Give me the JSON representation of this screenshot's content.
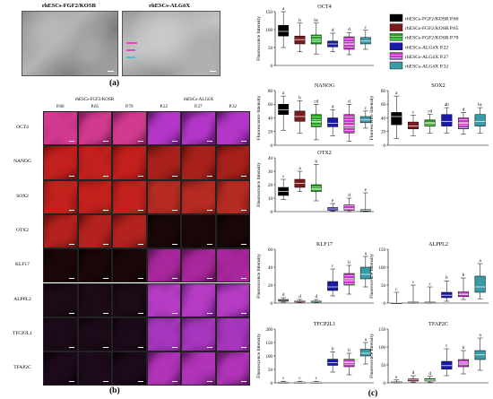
{
  "panel_a": {
    "label": "(a)",
    "left_title": "rhESCs-FGF2/KOSR",
    "right_title": "rhESCs-ALGöX"
  },
  "panel_b": {
    "label": "(b)",
    "group1_title": "rhESCs-FGF2/KOSR",
    "group2_title": "rhESCs-ALGöX",
    "columns": [
      "P.60",
      "P.65",
      "P.70",
      "P.22",
      "P.27",
      "P.32"
    ],
    "rows": [
      "OCT4",
      "NANOG",
      "SOX2",
      "OTX2",
      "KLF17",
      "ALPPL2",
      "TFCP2L1",
      "TFAP2C"
    ]
  },
  "panel_c": {
    "label": "(c)",
    "legend": [
      {
        "name": "rhESCs-FGF2/KOSR P.60",
        "color": "#000000",
        "pattern": "solid"
      },
      {
        "name": "rhESCs-FGF2/KOSR P.65",
        "color": "#7b1c1c",
        "pattern": "solid"
      },
      {
        "name": "rhESCs-FGF2/KOSR P.70",
        "color": "#1fa31f",
        "pattern": "hatch"
      },
      {
        "name": "rhESCs-ALGöX P.22",
        "color": "#1a1aa8",
        "pattern": "solid"
      },
      {
        "name": "rhESCs-ALGöX P.27",
        "color": "#cc33cc",
        "pattern": "hatch"
      },
      {
        "name": "rhESCs-ALGöX P.32",
        "color": "#3a9aa6",
        "pattern": "solid"
      }
    ]
  },
  "chart_data": [
    {
      "type": "box",
      "title": "OCT4",
      "ylabel": "Fluorescence Intensity",
      "ylim": [
        0,
        150
      ],
      "yticks": [
        0,
        50,
        100,
        150
      ],
      "series": [
        {
          "name": "rhESCs-FGF2/KOSR P.60",
          "min": 50,
          "q1": 82,
          "median": 95,
          "q3": 112,
          "max": 150,
          "letter": "a"
        },
        {
          "name": "rhESCs-FGF2/KOSR P.65",
          "min": 38,
          "q1": 60,
          "median": 72,
          "q3": 82,
          "max": 118,
          "letter": "b"
        },
        {
          "name": "rhESCs-FGF2/KOSR P.70",
          "min": 32,
          "q1": 60,
          "median": 70,
          "q3": 85,
          "max": 118,
          "letter": "bc"
        },
        {
          "name": "rhESCs-ALGöX P.22",
          "min": 38,
          "q1": 52,
          "median": 60,
          "q3": 68,
          "max": 90,
          "letter": "d"
        },
        {
          "name": "rhESCs-ALGöX P.27",
          "min": 30,
          "q1": 45,
          "median": 60,
          "q3": 80,
          "max": 92,
          "letter": "d"
        },
        {
          "name": "rhESCs-ALGöX P.32",
          "min": 45,
          "q1": 60,
          "median": 68,
          "q3": 78,
          "max": 98,
          "letter": "c"
        }
      ]
    },
    {
      "type": "box",
      "title": "NANOG",
      "ylabel": "Fluorescence Intensity",
      "ylim": [
        0,
        80
      ],
      "yticks": [
        0,
        20,
        40,
        60,
        80
      ],
      "series": [
        {
          "name": "rhESCs-FGF2/KOSR P.60",
          "min": 22,
          "q1": 45,
          "median": 52,
          "q3": 60,
          "max": 72,
          "letter": "a"
        },
        {
          "name": "rhESCs-FGF2/KOSR P.65",
          "min": 18,
          "q1": 35,
          "median": 42,
          "q3": 50,
          "max": 65,
          "letter": "b"
        },
        {
          "name": "rhESCs-FGF2/KOSR P.70",
          "min": 8,
          "q1": 27,
          "median": 35,
          "q3": 45,
          "max": 60,
          "letter": "cd"
        },
        {
          "name": "rhESCs-ALGöX P.22",
          "min": 14,
          "q1": 27,
          "median": 32,
          "q3": 40,
          "max": 52,
          "letter": "d"
        },
        {
          "name": "rhESCs-ALGöX P.27",
          "min": 6,
          "q1": 18,
          "median": 28,
          "q3": 45,
          "max": 60,
          "letter": "d"
        },
        {
          "name": "rhESCs-ALGöX P.32",
          "min": 25,
          "q1": 33,
          "median": 37,
          "q3": 42,
          "max": 50,
          "letter": "c"
        }
      ]
    },
    {
      "type": "box",
      "title": "SOX2",
      "ylabel": "Fluorescence Intensity",
      "ylim": [
        0,
        80
      ],
      "yticks": [
        0,
        20,
        40,
        60,
        80
      ],
      "series": [
        {
          "name": "rhESCs-FGF2/KOSR P.60",
          "min": 10,
          "q1": 30,
          "median": 42,
          "q3": 48,
          "max": 72,
          "letter": "a"
        },
        {
          "name": "rhESCs-FGF2/KOSR P.65",
          "min": 14,
          "q1": 24,
          "median": 28,
          "q3": 34,
          "max": 44,
          "letter": "c"
        },
        {
          "name": "rhESCs-FGF2/KOSR P.70",
          "min": 18,
          "q1": 28,
          "median": 32,
          "q3": 37,
          "max": 45,
          "letter": "cd"
        },
        {
          "name": "rhESCs-ALGöX P.22",
          "min": 18,
          "q1": 28,
          "median": 35,
          "q3": 45,
          "max": 55,
          "letter": "ab"
        },
        {
          "name": "rhESCs-ALGöX P.27",
          "min": 16,
          "q1": 24,
          "median": 32,
          "q3": 40,
          "max": 48,
          "letter": "d"
        },
        {
          "name": "rhESCs-ALGöX P.32",
          "min": 18,
          "q1": 28,
          "median": 35,
          "q3": 45,
          "max": 55,
          "letter": "bc"
        }
      ]
    },
    {
      "type": "box",
      "title": "OTX2",
      "ylabel": "Fluorescence Intensity",
      "ylim": [
        0,
        40
      ],
      "yticks": [
        0,
        10,
        20,
        30,
        40
      ],
      "series": [
        {
          "name": "rhESCs-FGF2/KOSR P.60",
          "min": 9,
          "q1": 12,
          "median": 15,
          "q3": 18,
          "max": 24,
          "letter": "c"
        },
        {
          "name": "rhESCs-FGF2/KOSR P.65",
          "min": 15,
          "q1": 18,
          "median": 21,
          "q3": 24,
          "max": 30,
          "letter": "a"
        },
        {
          "name": "rhESCs-FGF2/KOSR P.70",
          "min": 8,
          "q1": 15,
          "median": 17,
          "q3": 20,
          "max": 35,
          "letter": "b"
        },
        {
          "name": "rhESCs-ALGöX P.22",
          "min": 0.5,
          "q1": 1,
          "median": 2,
          "q3": 3,
          "max": 6,
          "letter": "e"
        },
        {
          "name": "rhESCs-ALGöX P.27",
          "min": 0,
          "q1": 1,
          "median": 2,
          "q3": 5,
          "max": 10,
          "letter": "d"
        },
        {
          "name": "rhESCs-ALGöX P.32",
          "min": 0,
          "q1": 0.5,
          "median": 1,
          "q3": 1.5,
          "max": 14,
          "letter": "e"
        }
      ]
    },
    {
      "type": "box",
      "title": "KLF17",
      "ylabel": "Fluorescence Intensity",
      "ylim": [
        0,
        60
      ],
      "yticks": [
        0,
        20,
        40,
        60
      ],
      "series": [
        {
          "name": "rhESCs-FGF2/KOSR P.60",
          "min": 1,
          "q1": 2,
          "median": 3,
          "q3": 4,
          "max": 6,
          "letter": "d"
        },
        {
          "name": "rhESCs-FGF2/KOSR P.65",
          "min": 0.5,
          "q1": 1,
          "median": 2,
          "q3": 2.5,
          "max": 4,
          "letter": "d"
        },
        {
          "name": "rhESCs-FGF2/KOSR P.70",
          "min": 0.5,
          "q1": 1,
          "median": 2,
          "q3": 2.5,
          "max": 4,
          "letter": "d"
        },
        {
          "name": "rhESCs-ALGöX P.22",
          "min": 8,
          "q1": 14,
          "median": 18,
          "q3": 24,
          "max": 38,
          "letter": "c"
        },
        {
          "name": "rhESCs-ALGöX P.27",
          "min": 10,
          "q1": 20,
          "median": 26,
          "q3": 33,
          "max": 42,
          "letter": "b"
        },
        {
          "name": "rhESCs-ALGöX P.32",
          "min": 18,
          "q1": 27,
          "median": 32,
          "q3": 40,
          "max": 52,
          "letter": "a"
        }
      ]
    },
    {
      "type": "box",
      "title": "ALPPL2",
      "ylabel": "Fluorescence Intensity",
      "ylim": [
        0,
        150
      ],
      "yticks": [
        0,
        50,
        100,
        150
      ],
      "series": [
        {
          "name": "rhESCs-FGF2/KOSR P.60",
          "min": 0,
          "q1": 0,
          "median": 0.5,
          "q3": 1,
          "max": 30,
          "letter": "c"
        },
        {
          "name": "rhESCs-FGF2/KOSR P.65",
          "min": 0,
          "q1": 1,
          "median": 2,
          "q3": 3,
          "max": 50,
          "letter": "c"
        },
        {
          "name": "rhESCs-FGF2/KOSR P.70",
          "min": 0,
          "q1": 1,
          "median": 2,
          "q3": 3,
          "max": 45,
          "letter": "c"
        },
        {
          "name": "rhESCs-ALGöX P.22",
          "min": 5,
          "q1": 15,
          "median": 22,
          "q3": 30,
          "max": 62,
          "letter": "b"
        },
        {
          "name": "rhESCs-ALGöX P.27",
          "min": 10,
          "q1": 18,
          "median": 25,
          "q3": 32,
          "max": 70,
          "letter": "b"
        },
        {
          "name": "rhESCs-ALGöX P.32",
          "min": 12,
          "q1": 30,
          "median": 45,
          "q3": 75,
          "max": 110,
          "letter": "a"
        }
      ]
    },
    {
      "type": "box",
      "title": "TFCP2L1",
      "ylabel": "Fluorescence Intensity",
      "ylim": [
        0,
        200
      ],
      "yticks": [
        0,
        50,
        100,
        150,
        200
      ],
      "series": [
        {
          "name": "rhESCs-FGF2/KOSR P.60",
          "min": 0,
          "q1": 1,
          "median": 2,
          "q3": 3,
          "max": 6,
          "letter": "c"
        },
        {
          "name": "rhESCs-FGF2/KOSR P.65",
          "min": 0,
          "q1": 1,
          "median": 2,
          "q3": 3,
          "max": 6,
          "letter": "c"
        },
        {
          "name": "rhESCs-FGF2/KOSR P.70",
          "min": 0,
          "q1": 1,
          "median": 2,
          "q3": 3,
          "max": 6,
          "letter": "c"
        },
        {
          "name": "rhESCs-ALGöX P.22",
          "min": 40,
          "q1": 65,
          "median": 75,
          "q3": 88,
          "max": 115,
          "letter": "b"
        },
        {
          "name": "rhESCs-ALGöX P.27",
          "min": 30,
          "q1": 60,
          "median": 75,
          "q3": 88,
          "max": 110,
          "letter": "b"
        },
        {
          "name": "rhESCs-ALGöX P.32",
          "min": 70,
          "q1": 100,
          "median": 110,
          "q3": 125,
          "max": 150,
          "letter": "a"
        }
      ]
    },
    {
      "type": "box",
      "title": "TFAP2C",
      "ylabel": "Fluorescence Intensity",
      "ylim": [
        0,
        150
      ],
      "yticks": [
        0,
        50,
        100,
        150
      ],
      "series": [
        {
          "name": "rhESCs-FGF2/KOSR P.60",
          "min": 0,
          "q1": 1,
          "median": 2,
          "q3": 3,
          "max": 8,
          "letter": "e"
        },
        {
          "name": "rhESCs-FGF2/KOSR P.65",
          "min": 2,
          "q1": 5,
          "median": 8,
          "q3": 11,
          "max": 20,
          "letter": "d"
        },
        {
          "name": "rhESCs-FGF2/KOSR P.70",
          "min": 2,
          "q1": 5,
          "median": 8,
          "q3": 12,
          "max": 18,
          "letter": "d"
        },
        {
          "name": "rhESCs-ALGöX P.22",
          "min": 20,
          "q1": 38,
          "median": 48,
          "q3": 60,
          "max": 95,
          "letter": "c"
        },
        {
          "name": "rhESCs-ALGöX P.27",
          "min": 25,
          "q1": 45,
          "median": 55,
          "q3": 65,
          "max": 90,
          "letter": "b"
        },
        {
          "name": "rhESCs-ALGöX P.32",
          "min": 35,
          "q1": 65,
          "median": 78,
          "q3": 90,
          "max": 125,
          "letter": "a"
        }
      ]
    }
  ]
}
